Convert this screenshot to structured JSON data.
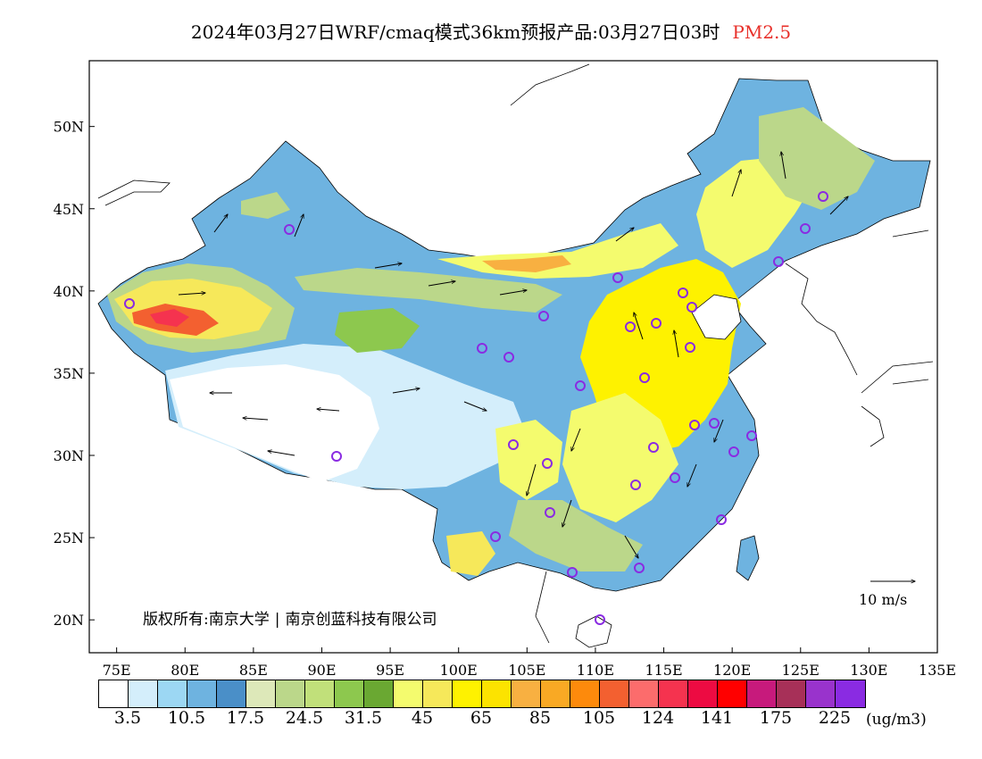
{
  "title": {
    "text": "2024年03月27日WRF/cmaq模式36km预报产品:03月27日03时",
    "pollutant": "PM2.5",
    "pollutant_color": "#e8302a"
  },
  "map": {
    "lon_range": [
      73,
      135
    ],
    "lat_range": [
      18,
      54
    ],
    "lon_ticks": [
      "75E",
      "80E",
      "85E",
      "90E",
      "95E",
      "100E",
      "105E",
      "110E",
      "115E",
      "120E",
      "125E",
      "130E",
      "135E"
    ],
    "lat_ticks": [
      "20N",
      "25N",
      "30N",
      "35N",
      "40N",
      "45N",
      "50N"
    ],
    "credit_left": "版权所有:南京大学",
    "credit_right": "南京创蓝科技有限公司",
    "vector_reference": "10 m/s",
    "station_marker_color": "#8a2be2"
  },
  "legend": {
    "colors": [
      "#ffffff",
      "#d4eefb",
      "#9cd7f3",
      "#6eb3e0",
      "#4a8fc8",
      "#dde8b9",
      "#bbd78a",
      "#c1e07a",
      "#8dc84e",
      "#6aa832",
      "#f4fb6e",
      "#f6e85a",
      "#fef200",
      "#fce300",
      "#f8b041",
      "#f9a924",
      "#fd8a0c",
      "#f36030",
      "#fc6c6c",
      "#f5334f",
      "#ed0b42",
      "#ff0000",
      "#c71a7c",
      "#a73058",
      "#9933cc",
      "#8a2be2"
    ],
    "labels": [
      "3.5",
      "10.5",
      "17.5",
      "24.5",
      "31.5",
      "45",
      "65",
      "85",
      "105",
      "124",
      "141",
      "175",
      "225"
    ],
    "unit": "(ug/m3)"
  }
}
